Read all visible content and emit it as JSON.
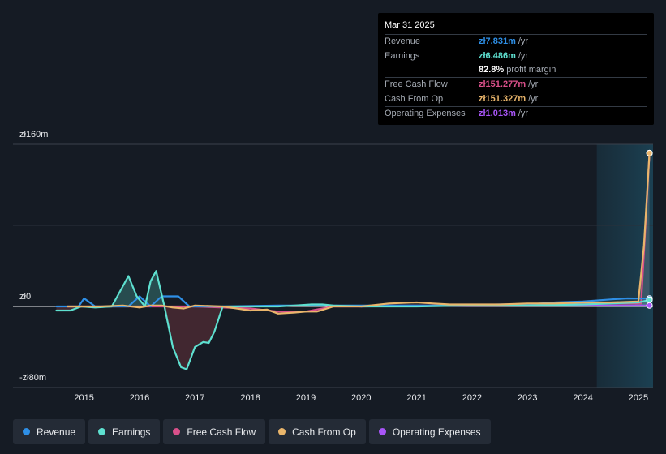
{
  "tooltip": {
    "date": "Mar 31 2025",
    "rows": [
      {
        "label": "Revenue",
        "value": "zł7.831m",
        "unit": "/yr",
        "color": "#2e8fe6"
      },
      {
        "label": "Earnings",
        "value": "zł6.486m",
        "unit": "/yr",
        "color": "#5ee0d0"
      },
      {
        "label": "",
        "value": "82.8%",
        "unit": "profit margin",
        "color": "#ffffff"
      },
      {
        "label": "Free Cash Flow",
        "value": "zł151.277m",
        "unit": "/yr",
        "color": "#d9508a"
      },
      {
        "label": "Cash From Op",
        "value": "zł151.327m",
        "unit": "/yr",
        "color": "#e9b56b"
      },
      {
        "label": "Operating Expenses",
        "value": "zł1.013m",
        "unit": "/yr",
        "color": "#a855f7"
      }
    ]
  },
  "legend": [
    {
      "label": "Revenue",
      "color": "#2e8fe6"
    },
    {
      "label": "Earnings",
      "color": "#5ee0d0"
    },
    {
      "label": "Free Cash Flow",
      "color": "#d9508a"
    },
    {
      "label": "Cash From Op",
      "color": "#e9b56b"
    },
    {
      "label": "Operating Expenses",
      "color": "#a855f7"
    }
  ],
  "chart_data": {
    "type": "line",
    "y_tick_labels": [
      "zł160m",
      "zł0",
      "-zł80m"
    ],
    "y_ticks": [
      160,
      0,
      -80
    ],
    "ylim": [
      -80,
      160
    ],
    "x_tick_labels": [
      "2015",
      "2016",
      "2017",
      "2018",
      "2019",
      "2020",
      "2021",
      "2022",
      "2023",
      "2024",
      "2025"
    ],
    "x_ticks": [
      2015,
      2016,
      2017,
      2018,
      2019,
      2020,
      2021,
      2022,
      2023,
      2024,
      2025
    ],
    "xlim": [
      2014.2,
      2025.25
    ],
    "forecast_shade_start": 2024.25,
    "series": [
      {
        "name": "Revenue",
        "color": "#2e8fe6",
        "points": [
          [
            2014.5,
            0
          ],
          [
            2014.9,
            0
          ],
          [
            2015.0,
            8
          ],
          [
            2015.2,
            0
          ],
          [
            2015.5,
            0
          ],
          [
            2015.8,
            0
          ],
          [
            2016.0,
            10
          ],
          [
            2016.2,
            0
          ],
          [
            2016.4,
            10
          ],
          [
            2016.7,
            10
          ],
          [
            2016.9,
            0
          ],
          [
            2017.5,
            0
          ],
          [
            2018.5,
            1
          ],
          [
            2019.5,
            1
          ],
          [
            2020.5,
            1
          ],
          [
            2021.5,
            1
          ],
          [
            2022.5,
            2
          ],
          [
            2023.0,
            2
          ],
          [
            2023.5,
            4
          ],
          [
            2024.0,
            5
          ],
          [
            2024.5,
            7
          ],
          [
            2024.8,
            8
          ],
          [
            2025.2,
            7.8
          ]
        ]
      },
      {
        "name": "Earnings",
        "color": "#5ee0d0",
        "points": [
          [
            2014.5,
            -4
          ],
          [
            2014.75,
            -4
          ],
          [
            2014.95,
            0
          ],
          [
            2015.2,
            -1
          ],
          [
            2015.5,
            0
          ],
          [
            2015.7,
            20
          ],
          [
            2015.8,
            30
          ],
          [
            2015.95,
            10
          ],
          [
            2016.1,
            0
          ],
          [
            2016.2,
            25
          ],
          [
            2016.3,
            35
          ],
          [
            2016.45,
            0
          ],
          [
            2016.6,
            -40
          ],
          [
            2016.75,
            -60
          ],
          [
            2016.85,
            -62
          ],
          [
            2017.0,
            -40
          ],
          [
            2017.15,
            -35
          ],
          [
            2017.25,
            -36
          ],
          [
            2017.35,
            -25
          ],
          [
            2017.5,
            0
          ],
          [
            2017.7,
            0
          ],
          [
            2018.5,
            0
          ],
          [
            2018.8,
            1
          ],
          [
            2019.1,
            2
          ],
          [
            2019.3,
            2
          ],
          [
            2019.5,
            1
          ],
          [
            2020.0,
            0
          ],
          [
            2021.0,
            0
          ],
          [
            2022.0,
            1
          ],
          [
            2023.0,
            1
          ],
          [
            2024.0,
            2
          ],
          [
            2024.5,
            3
          ],
          [
            2025.0,
            4
          ],
          [
            2025.2,
            6.5
          ]
        ]
      },
      {
        "name": "Free Cash Flow",
        "color": "#d9508a",
        "points": [
          [
            2014.7,
            0
          ],
          [
            2015.5,
            0
          ],
          [
            2016.0,
            0
          ],
          [
            2016.5,
            0
          ],
          [
            2017.0,
            0
          ],
          [
            2017.5,
            -1
          ],
          [
            2018.0,
            -2
          ],
          [
            2018.5,
            -5
          ],
          [
            2019.0,
            -5
          ],
          [
            2019.5,
            0
          ],
          [
            2020.0,
            0
          ],
          [
            2020.5,
            1
          ],
          [
            2021.0,
            1
          ],
          [
            2021.5,
            1
          ],
          [
            2022.0,
            1
          ],
          [
            2022.5,
            1
          ],
          [
            2023.0,
            2
          ],
          [
            2023.5,
            2
          ],
          [
            2024.0,
            3
          ],
          [
            2024.5,
            3
          ],
          [
            2025.05,
            3
          ],
          [
            2025.2,
            151.3
          ]
        ]
      },
      {
        "name": "Cash From Op",
        "color": "#e9b56b",
        "points": [
          [
            2014.7,
            0
          ],
          [
            2015.0,
            0
          ],
          [
            2015.3,
            0
          ],
          [
            2015.7,
            1
          ],
          [
            2016.0,
            -1
          ],
          [
            2016.2,
            1
          ],
          [
            2016.4,
            1
          ],
          [
            2016.6,
            -1
          ],
          [
            2016.8,
            -2
          ],
          [
            2017.0,
            1
          ],
          [
            2017.5,
            0
          ],
          [
            2018.0,
            -4
          ],
          [
            2018.3,
            -3
          ],
          [
            2018.5,
            -7
          ],
          [
            2018.8,
            -6
          ],
          [
            2019.0,
            -5
          ],
          [
            2019.2,
            -5
          ],
          [
            2019.5,
            0
          ],
          [
            2020.0,
            0
          ],
          [
            2020.5,
            3
          ],
          [
            2021.0,
            4
          ],
          [
            2021.3,
            3
          ],
          [
            2021.6,
            2
          ],
          [
            2022.0,
            2
          ],
          [
            2022.5,
            2
          ],
          [
            2023.0,
            3
          ],
          [
            2023.5,
            3
          ],
          [
            2024.0,
            4
          ],
          [
            2024.5,
            4
          ],
          [
            2025.0,
            5
          ],
          [
            2025.1,
            60
          ],
          [
            2025.2,
            151.3
          ]
        ]
      },
      {
        "name": "Operating Expenses",
        "color": "#a855f7",
        "points": [
          [
            2020.0,
            0
          ],
          [
            2021.0,
            0.5
          ],
          [
            2022.0,
            0.8
          ],
          [
            2023.0,
            1
          ],
          [
            2024.0,
            1
          ],
          [
            2025.2,
            1
          ]
        ]
      }
    ]
  }
}
